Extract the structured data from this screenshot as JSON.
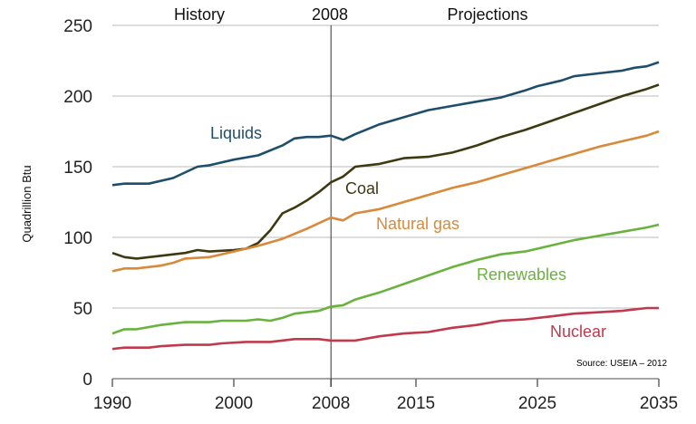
{
  "chart_data": {
    "type": "line",
    "ylabel": "Quadrillion Btu",
    "xlim": [
      1990,
      2035
    ],
    "ylim": [
      0,
      250
    ],
    "x_ticks": [
      1990,
      2000,
      2008,
      2015,
      2025,
      2035
    ],
    "y_ticks": [
      0,
      50,
      100,
      150,
      200,
      250
    ],
    "grid": "horizontal",
    "divider_year": 2008,
    "header": {
      "history": "History",
      "divider": "2008",
      "projections": "Projections"
    },
    "source": "Source: USEIA – 2012",
    "series": [
      {
        "name": "Liquids",
        "color": "#1f4e6b",
        "x": [
          1990,
          1991,
          1993,
          1995,
          1997,
          1998,
          2000,
          2002,
          2004,
          2005,
          2006,
          2007,
          2008,
          2009,
          2010,
          2012,
          2014,
          2016,
          2018,
          2020,
          2022,
          2024,
          2025,
          2027,
          2028,
          2030,
          2032,
          2033,
          2034,
          2035
        ],
        "y": [
          137,
          138,
          138,
          142,
          150,
          151,
          155,
          158,
          165,
          170,
          171,
          171,
          172,
          169,
          173,
          180,
          185,
          190,
          193,
          196,
          199,
          204,
          207,
          211,
          214,
          216,
          218,
          220,
          221,
          224
        ]
      },
      {
        "name": "Coal",
        "color": "#3d3a12",
        "x": [
          1990,
          1991,
          1992,
          1994,
          1996,
          1997,
          1998,
          2000,
          2001,
          2002,
          2003,
          2004,
          2005,
          2006,
          2007,
          2008,
          2009,
          2010,
          2012,
          2014,
          2016,
          2018,
          2020,
          2022,
          2024,
          2026,
          2028,
          2030,
          2032,
          2034,
          2035
        ],
        "y": [
          89,
          86,
          85,
          87,
          89,
          91,
          90,
          91,
          92,
          96,
          105,
          117,
          121,
          126,
          132,
          139,
          143,
          150,
          152,
          156,
          157,
          160,
          165,
          171,
          176,
          182,
          188,
          194,
          200,
          205,
          208
        ]
      },
      {
        "name": "Natural gas",
        "color": "#d9893a",
        "x": [
          1990,
          1991,
          1992,
          1994,
          1995,
          1996,
          1998,
          2000,
          2002,
          2004,
          2006,
          2008,
          2009,
          2010,
          2012,
          2014,
          2016,
          2018,
          2020,
          2022,
          2024,
          2026,
          2028,
          2030,
          2032,
          2034,
          2035
        ],
        "y": [
          76,
          78,
          78,
          80,
          82,
          85,
          86,
          90,
          94,
          99,
          106,
          114,
          112,
          117,
          120,
          125,
          130,
          135,
          139,
          144,
          149,
          154,
          159,
          164,
          168,
          172,
          175
        ]
      },
      {
        "name": "Renewables",
        "color": "#6ab23e",
        "x": [
          1990,
          1991,
          1992,
          1994,
          1996,
          1998,
          1999,
          2001,
          2002,
          2003,
          2004,
          2005,
          2007,
          2008,
          2009,
          2010,
          2012,
          2014,
          2016,
          2018,
          2020,
          2022,
          2024,
          2026,
          2028,
          2030,
          2032,
          2034,
          2035
        ],
        "y": [
          32,
          35,
          35,
          38,
          40,
          40,
          41,
          41,
          42,
          41,
          43,
          46,
          48,
          51,
          52,
          56,
          61,
          67,
          73,
          79,
          84,
          88,
          90,
          94,
          98,
          101,
          104,
          107,
          109
        ]
      },
      {
        "name": "Nuclear",
        "color": "#c0394c",
        "x": [
          1990,
          1991,
          1993,
          1994,
          1996,
          1998,
          1999,
          2001,
          2003,
          2005,
          2007,
          2008,
          2010,
          2012,
          2014,
          2016,
          2018,
          2020,
          2022,
          2024,
          2026,
          2028,
          2030,
          2032,
          2034,
          2035
        ],
        "y": [
          21,
          22,
          22,
          23,
          24,
          24,
          25,
          26,
          26,
          28,
          28,
          27,
          27,
          30,
          32,
          33,
          36,
          38,
          41,
          42,
          44,
          46,
          47,
          48,
          50,
          50
        ]
      }
    ]
  }
}
